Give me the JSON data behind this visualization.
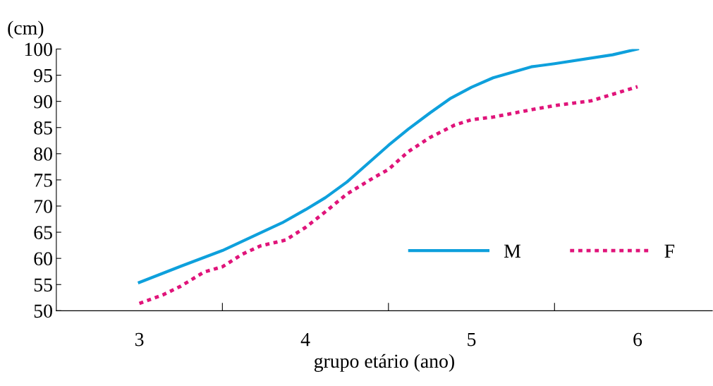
{
  "chart_data": {
    "type": "line",
    "xlabel": "grupo etário (ano)",
    "ylabel": "(cm)",
    "xlim": [
      2.5,
      6.45
    ],
    "ylim": [
      50,
      100
    ],
    "xticks": [
      {
        "value": 3,
        "label": "3"
      },
      {
        "value": 3.5,
        "label": null
      },
      {
        "value": 4,
        "label": "4"
      },
      {
        "value": 4.5,
        "label": null
      },
      {
        "value": 5,
        "label": "5"
      },
      {
        "value": 5.5,
        "label": null
      },
      {
        "value": 6,
        "label": "6"
      }
    ],
    "yticks": [
      50,
      55,
      60,
      65,
      70,
      75,
      80,
      85,
      90,
      95,
      100
    ],
    "grid": false,
    "legend": "bottom right",
    "series": [
      {
        "name": "M",
        "color": "#0ea0dc",
        "line_style": "solid",
        "x": [
          3,
          3.25,
          3.5,
          3.73,
          3.86,
          4,
          4.12,
          4.25,
          4.5,
          4.62,
          4.75,
          4.87,
          5,
          5.13,
          5.36,
          5.5,
          5.85,
          6
        ],
        "values": [
          55.4,
          58.5,
          61.5,
          64.9,
          66.8,
          69.3,
          71.6,
          74.6,
          81.6,
          84.7,
          87.8,
          90.5,
          92.7,
          94.5,
          96.6,
          97.2,
          98.9,
          100
        ]
      },
      {
        "name": "F",
        "color": "#e0147a",
        "line_style": "dotted",
        "x": [
          3,
          3.14,
          3.25,
          3.39,
          3.5,
          3.62,
          3.73,
          3.88,
          4,
          4.12,
          4.25,
          4.41,
          4.5,
          4.62,
          4.75,
          4.9,
          5,
          5.13,
          5.36,
          5.5,
          5.72,
          6
        ],
        "values": [
          51.4,
          53,
          54.7,
          57.4,
          58.4,
          60.8,
          62.4,
          63.5,
          65.9,
          68.9,
          72.3,
          75.4,
          77,
          80.4,
          83.1,
          85.5,
          86.5,
          87,
          88.4,
          89.2,
          90.1,
          92.8
        ]
      }
    ]
  }
}
